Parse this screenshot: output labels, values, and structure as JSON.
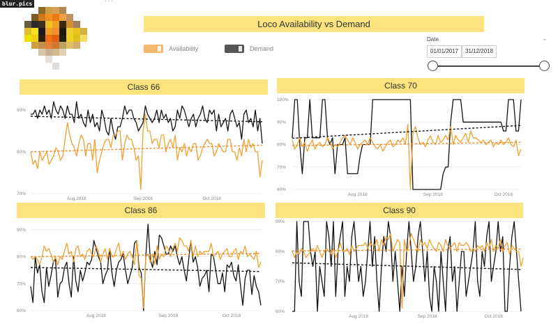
{
  "logo": {
    "watermark": "blur.pics",
    "more": "···"
  },
  "header": {
    "title": "Loco Availability vs Demand"
  },
  "legend": {
    "availability_label": "Availability",
    "demand_label": "Demand"
  },
  "date_filter": {
    "label": "Date",
    "start": "01/01/2017",
    "end": "31/12/2018"
  },
  "colors": {
    "availability": "#f0a030",
    "demand": "#111111",
    "banner": "#fbe47d",
    "avail_trend": "#f08a24"
  },
  "chart_data": [
    {
      "type": "line",
      "title": "Class 66",
      "ylim": [
        70,
        92
      ],
      "yticks": [
        70,
        80,
        90
      ],
      "ytick_labels": [
        "70%",
        "80%",
        "90%"
      ],
      "xticks": [
        {
          "i": 20,
          "label": "Aug 2018"
        },
        {
          "i": 49,
          "label": "Sep 2018"
        },
        {
          "i": 79,
          "label": "Oct 2018"
        }
      ],
      "series": [
        {
          "name": "Demand",
          "color": "#111111",
          "values": [
            89,
            89,
            90,
            88,
            90,
            89,
            91,
            89,
            90,
            88,
            92,
            90,
            89,
            91,
            90,
            88,
            91,
            89,
            89,
            87,
            92,
            88,
            89,
            87,
            86,
            90,
            87,
            89,
            86,
            87,
            85,
            90,
            88,
            85,
            84,
            88,
            85,
            83,
            86,
            86,
            88,
            91,
            89,
            90,
            90,
            88,
            87,
            85,
            86,
            87,
            91,
            89,
            88,
            87,
            88,
            90,
            87,
            90,
            88,
            89,
            87,
            88,
            85,
            86,
            90,
            88,
            91,
            90,
            88,
            86,
            88,
            89,
            86,
            88,
            89,
            91,
            88,
            87,
            90,
            89,
            90,
            85,
            89,
            86,
            87,
            88,
            85,
            89,
            90,
            88,
            86,
            87,
            83,
            89,
            90,
            87,
            88,
            86,
            90,
            85,
            88,
            82
          ]
        },
        {
          "name": "Availability",
          "color": "#f0a030",
          "values": [
            80,
            77,
            78,
            76,
            80,
            78,
            79,
            80,
            77,
            78,
            79,
            81,
            80,
            78,
            79,
            83,
            87,
            84,
            82,
            81,
            79,
            82,
            84,
            83,
            79,
            82,
            82,
            78,
            83,
            75,
            78,
            80,
            82,
            83,
            83,
            81,
            84,
            84,
            85,
            85,
            78,
            82,
            84,
            83,
            83,
            81,
            78,
            79,
            71,
            85,
            89,
            85,
            85,
            82,
            83,
            83,
            81,
            84,
            84,
            80,
            82,
            83,
            81,
            84,
            78,
            81,
            80,
            82,
            79,
            81,
            80,
            82,
            82,
            78,
            79,
            81,
            82,
            83,
            82,
            82,
            79,
            80,
            82,
            81,
            80,
            80,
            83,
            83,
            80,
            80,
            78,
            81,
            79,
            83,
            80,
            83,
            81,
            82,
            80,
            80,
            74,
            78
          ]
        },
        {
          "name": "Demand trend",
          "color": "#111111",
          "dashed": true,
          "values": [
            88.5,
            87.2
          ]
        },
        {
          "name": "Availability trend",
          "color": "#f08a24",
          "dashed": true,
          "values": [
            80.0,
            81.6
          ]
        }
      ]
    },
    {
      "type": "line",
      "title": "Class 70",
      "ylim": [
        60,
        100
      ],
      "yticks": [
        60,
        70,
        80,
        90,
        100
      ],
      "ytick_labels": [
        "60%",
        "70%",
        "80%",
        "90%",
        "100%"
      ],
      "xticks": [
        {
          "i": 26,
          "label": "Aug 2018"
        },
        {
          "i": 56,
          "label": "Sep 2018"
        },
        {
          "i": 84,
          "label": "Oct 2018"
        }
      ],
      "series": [
        {
          "name": "Demand",
          "color": "#111111",
          "values": [
            83,
            100,
            100,
            80,
            67,
            83,
            83,
            100,
            83,
            83,
            83,
            83,
            100,
            100,
            83,
            80,
            83,
            67,
            80,
            80,
            80,
            83,
            67,
            67,
            67,
            67,
            67,
            75,
            80,
            80,
            80,
            80,
            100,
            100,
            100,
            100,
            100,
            100,
            100,
            100,
            100,
            100,
            100,
            100,
            100,
            100,
            100,
            100,
            60,
            60,
            60,
            60,
            60,
            60,
            60,
            60,
            60,
            60,
            60,
            60,
            67,
            70,
            70,
            90,
            100,
            100,
            100,
            100,
            90,
            90,
            90,
            90,
            90,
            90,
            90,
            90,
            90,
            90,
            90,
            90,
            90,
            90,
            90,
            90,
            86,
            86,
            100,
            100,
            100,
            86,
            86,
            100
          ]
        },
        {
          "name": "Availability",
          "color": "#f0a030",
          "values": [
            82,
            78,
            80,
            83,
            79,
            81,
            77,
            80,
            82,
            78,
            80,
            81,
            79,
            80,
            83,
            81,
            78,
            80,
            79,
            81,
            83,
            84,
            82,
            80,
            83,
            81,
            78,
            80,
            81,
            82,
            80,
            83,
            81,
            79,
            78,
            80,
            77,
            79,
            81,
            82,
            79,
            80,
            82,
            81,
            83,
            80,
            89,
            60,
            85,
            88,
            83,
            80,
            81,
            79,
            82,
            84,
            81,
            80,
            84,
            81,
            82,
            84,
            82,
            88,
            80,
            84,
            82,
            81,
            83,
            85,
            81,
            86,
            83,
            83,
            82,
            81,
            82,
            80,
            81,
            82,
            79,
            81,
            80,
            82,
            80,
            81,
            83,
            80,
            79,
            82,
            75,
            78
          ]
        },
        {
          "name": "Demand trend",
          "color": "#111111",
          "dashed": true,
          "values": [
            82.8,
            88.5
          ]
        },
        {
          "name": "Availability trend",
          "color": "#f08a24",
          "dashed": true,
          "values": [
            79.5,
            81.0
          ]
        }
      ]
    },
    {
      "type": "line",
      "title": "Class 86",
      "ylim": [
        60,
        92
      ],
      "yticks": [
        60,
        70,
        80,
        90
      ],
      "ytick_labels": [
        "60%",
        "70%",
        "80%",
        "90%"
      ],
      "xticks": [
        {
          "i": 29,
          "label": "Aug 2018"
        },
        {
          "i": 61,
          "label": "Sep 2018"
        },
        {
          "i": 89,
          "label": "Oct 2018"
        }
      ],
      "series": [
        {
          "name": "Demand",
          "color": "#111111",
          "values": [
            69,
            63,
            80,
            74,
            77,
            67,
            63,
            76,
            69,
            73,
            78,
            79,
            65,
            70,
            71,
            76,
            78,
            70,
            65,
            80,
            71,
            67,
            75,
            71,
            74,
            78,
            77,
            79,
            86,
            83,
            80,
            78,
            70,
            73,
            75,
            83,
            74,
            69,
            75,
            78,
            79,
            81,
            75,
            70,
            73,
            76,
            85,
            86,
            76,
            74,
            60,
            80,
            92,
            79,
            76,
            82,
            77,
            88,
            87,
            84,
            81,
            81,
            84,
            82,
            84,
            80,
            77,
            80,
            75,
            71,
            79,
            86,
            78,
            80,
            76,
            69,
            72,
            73,
            75,
            67,
            81,
            80,
            75,
            70,
            70,
            74,
            67,
            77,
            76,
            78,
            73,
            71,
            77,
            69,
            62,
            72,
            75,
            75,
            66,
            73,
            69,
            67,
            62
          ]
        },
        {
          "name": "Availability",
          "color": "#f0a030",
          "values": [
            80,
            79,
            80,
            79,
            77,
            80,
            84,
            82,
            83,
            81,
            78,
            80,
            77,
            80,
            79,
            82,
            85,
            81,
            82,
            78,
            83,
            84,
            80,
            81,
            79,
            82,
            83,
            81,
            80,
            84,
            82,
            78,
            81,
            83,
            79,
            83,
            80,
            80,
            83,
            85,
            80,
            82,
            79,
            81,
            82,
            80,
            77,
            86,
            73,
            72,
            61,
            80,
            81,
            78,
            81,
            77,
            84,
            79,
            81,
            80,
            84,
            83,
            80,
            83,
            85,
            82,
            87,
            86,
            84,
            84,
            82,
            86,
            80,
            84,
            80,
            82,
            81,
            82,
            82,
            82,
            85,
            80,
            81,
            82,
            79,
            81,
            82,
            83,
            80,
            80,
            82,
            83,
            79,
            82,
            81,
            84,
            80,
            81,
            80,
            79,
            82,
            76,
            78
          ]
        },
        {
          "name": "Demand trend",
          "color": "#111111",
          "dashed": true,
          "values": [
            76.0,
            74.5
          ]
        },
        {
          "name": "Availability trend",
          "color": "#f08a24",
          "dashed": true,
          "values": [
            80.0,
            81.2
          ]
        }
      ]
    },
    {
      "type": "line",
      "title": "Class 90",
      "ylim": [
        60,
        90
      ],
      "yticks": [
        60,
        70,
        80,
        90
      ],
      "ytick_labels": [
        "60%",
        "70%",
        "80%",
        "90%"
      ],
      "xticks": [
        {
          "i": 29,
          "label": "Aug 2018"
        },
        {
          "i": 59,
          "label": "Sep 2018"
        },
        {
          "i": 88,
          "label": "Oct 2018"
        }
      ],
      "series": [
        {
          "name": "Demand",
          "color": "#111111",
          "values": [
            60,
            60,
            90,
            70,
            65,
            90,
            90,
            90,
            80,
            75,
            80,
            60,
            75,
            70,
            65,
            90,
            85,
            75,
            90,
            65,
            80,
            85,
            90,
            65,
            75,
            70,
            85,
            90,
            80,
            70,
            75,
            65,
            70,
            80,
            90,
            75,
            85,
            70,
            60,
            75,
            85,
            80,
            90,
            85,
            70,
            80,
            70,
            60,
            75,
            65,
            80,
            90,
            80,
            70,
            75,
            85,
            90,
            80,
            70,
            80,
            65,
            60,
            75,
            70,
            60,
            80,
            70,
            60,
            80,
            85,
            70,
            75,
            60,
            70,
            80,
            80,
            65,
            70,
            75,
            80,
            90,
            70,
            65,
            80,
            75,
            85,
            90,
            70,
            75,
            80,
            90,
            80,
            85,
            60,
            60,
            75,
            85,
            90,
            80,
            70,
            60
          ]
        },
        {
          "name": "Availability",
          "color": "#f0a030",
          "values": [
            80,
            78,
            80,
            79,
            81,
            80,
            78,
            79,
            80,
            81,
            80,
            82,
            80,
            78,
            80,
            81,
            80,
            79,
            81,
            78,
            80,
            83,
            80,
            80,
            81,
            79,
            82,
            80,
            81,
            82,
            82,
            82,
            83,
            81,
            83,
            82,
            82,
            84,
            80,
            84,
            82,
            85,
            84,
            86,
            80,
            82,
            84,
            83,
            61,
            84,
            80,
            82,
            86,
            84,
            82,
            80,
            84,
            82,
            83,
            81,
            84,
            82,
            81,
            80,
            83,
            82,
            80,
            84,
            82,
            81,
            82,
            83,
            80,
            83,
            82,
            82,
            83,
            82,
            80,
            81,
            80,
            82,
            81,
            82,
            80,
            83,
            81,
            84,
            80,
            82,
            81,
            84,
            80,
            82,
            83,
            79,
            82,
            81,
            80,
            80,
            75,
            78
          ]
        },
        {
          "name": "Demand trend",
          "color": "#111111",
          "dashed": true,
          "values": [
            76.2,
            74.0
          ]
        },
        {
          "name": "Availability trend",
          "color": "#f08a24",
          "dashed": true,
          "values": [
            80.2,
            80.8
          ]
        }
      ]
    }
  ]
}
